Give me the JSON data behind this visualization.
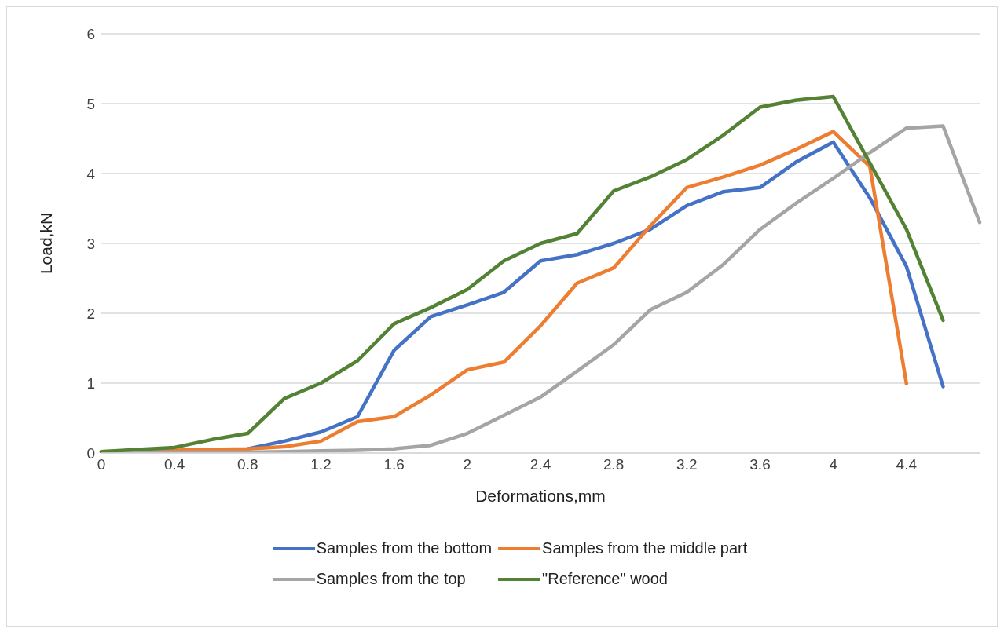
{
  "chart_data": {
    "type": "line",
    "xlabel": "Deformations,mm",
    "ylabel": "Load,kN",
    "categories": [
      "0",
      null,
      "0.4",
      null,
      "0.8",
      null,
      "1.2",
      null,
      "1.6",
      null,
      "2",
      null,
      "2.4",
      null,
      "2.8",
      null,
      "3.2",
      null,
      "3.6",
      null,
      "4",
      null,
      "4.4",
      null,
      null
    ],
    "ylim": [
      0,
      6
    ],
    "yticks": [
      0,
      1,
      2,
      3,
      4,
      5,
      6
    ],
    "grid": "y",
    "legend": "bottom",
    "marker": "none",
    "line_style": "solid",
    "series": [
      {
        "name": "Samples from the bottom",
        "color": "#4472c4",
        "values": [
          null,
          null,
          null,
          null,
          0.06,
          0.17,
          0.3,
          0.52,
          1.47,
          1.95,
          2.12,
          2.3,
          2.75,
          2.84,
          3.0,
          3.2,
          3.54,
          3.74,
          3.8,
          4.17,
          4.45,
          3.65,
          2.67,
          0.95,
          null
        ]
      },
      {
        "name": "Samples from the middle part",
        "color": "#ed7d31",
        "values": [
          0.02,
          0.03,
          0.04,
          0.05,
          0.06,
          0.09,
          0.17,
          0.45,
          0.52,
          0.83,
          1.19,
          1.3,
          1.82,
          2.43,
          2.65,
          3.25,
          3.8,
          3.95,
          4.12,
          4.35,
          4.6,
          4.1,
          0.99,
          null,
          null
        ]
      },
      {
        "name": "Samples from the top",
        "color": "#a5a5a5",
        "values": [
          0.01,
          0.01,
          0.01,
          0.01,
          0.01,
          0.02,
          0.03,
          0.04,
          0.06,
          0.11,
          0.28,
          0.54,
          0.8,
          1.17,
          1.55,
          2.05,
          2.3,
          2.7,
          3.2,
          3.58,
          3.93,
          4.3,
          4.65,
          4.68,
          3.3
        ]
      },
      {
        "name": "\"Reference\" wood",
        "color": "#548235",
        "values": [
          0.02,
          0.05,
          0.08,
          0.19,
          0.28,
          0.78,
          1.0,
          1.32,
          1.85,
          2.08,
          2.34,
          2.75,
          3.0,
          3.14,
          3.75,
          3.95,
          4.2,
          4.55,
          4.95,
          5.05,
          5.1,
          4.15,
          3.2,
          1.9,
          null
        ]
      }
    ]
  }
}
